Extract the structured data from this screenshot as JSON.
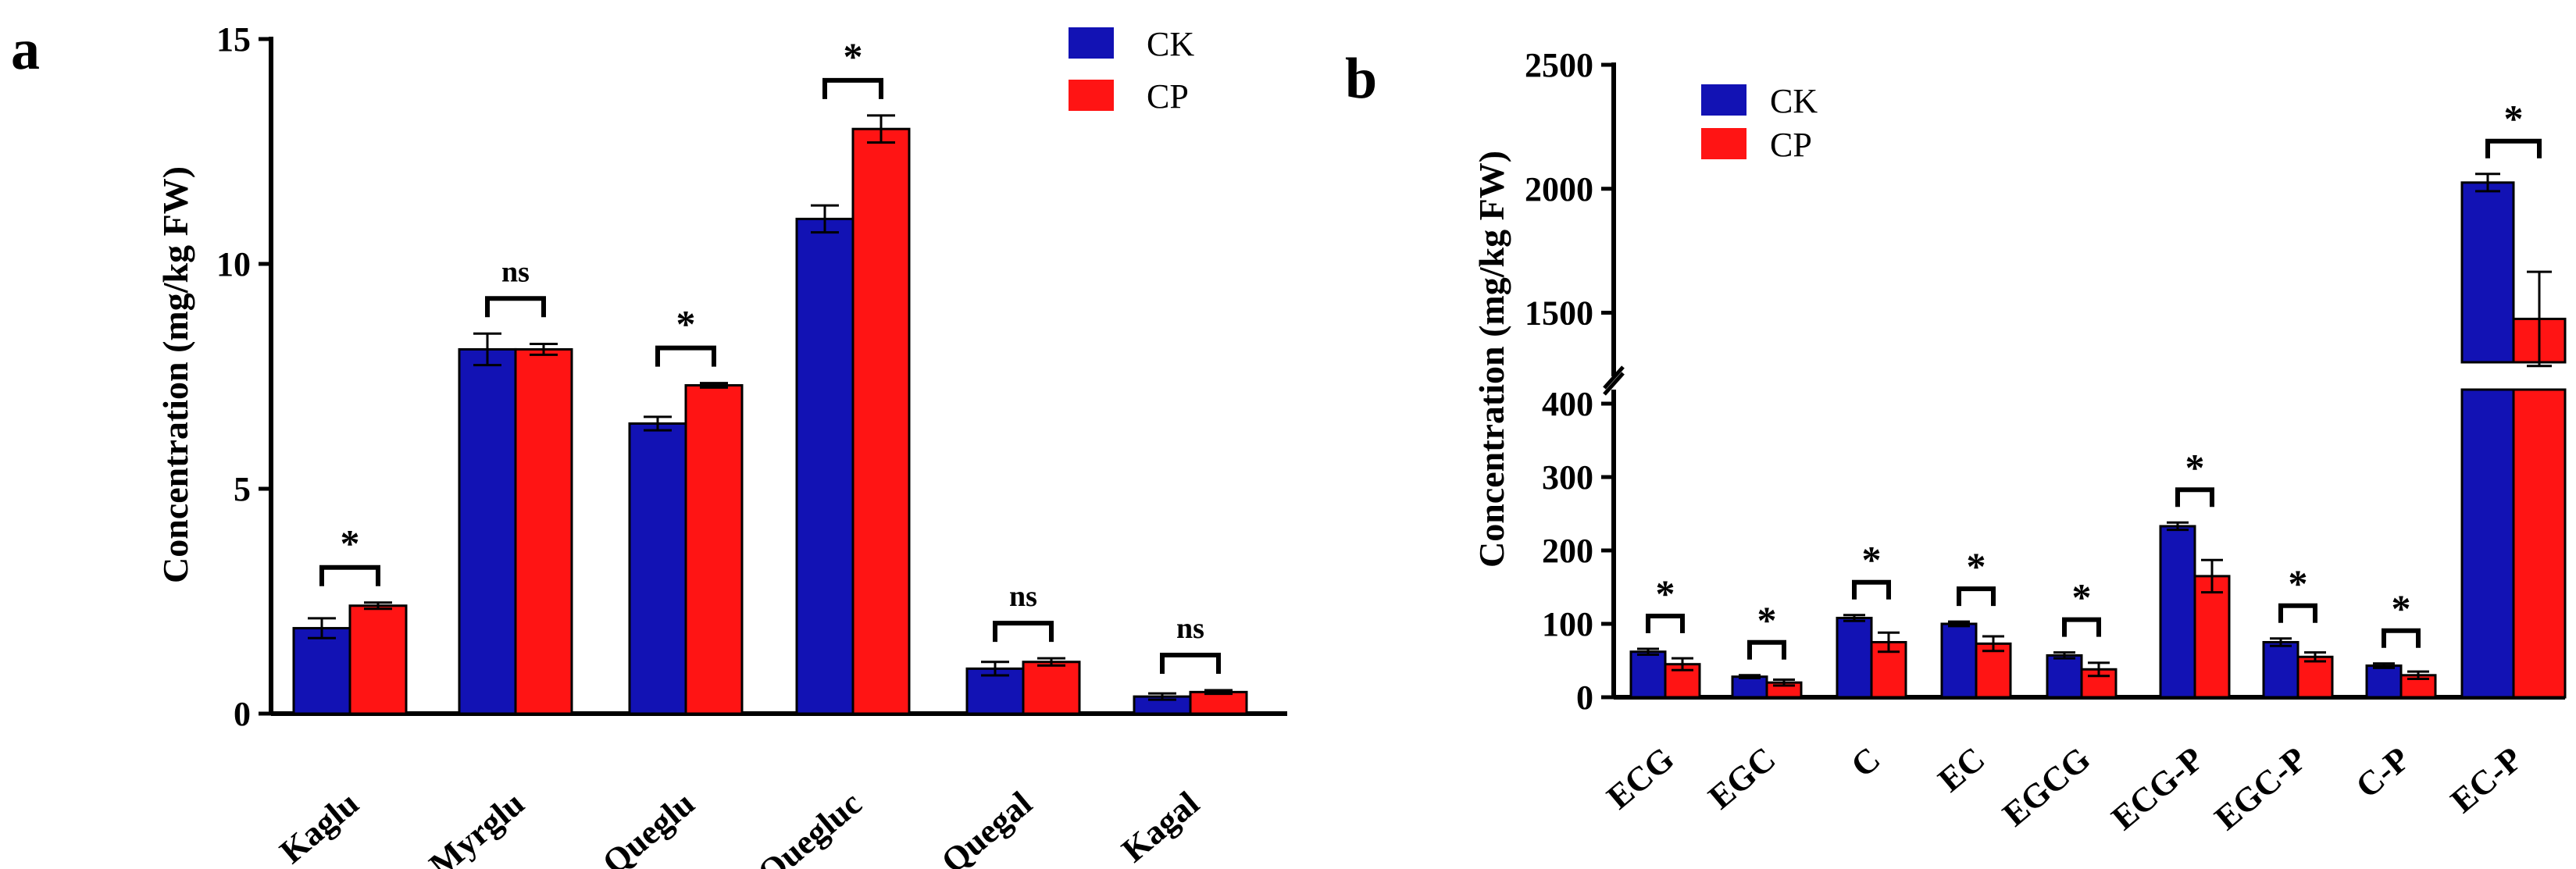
{
  "colors": {
    "CK": "#1212B4",
    "CP": "#FF1414"
  },
  "legend": [
    {
      "name": "CK",
      "color": "#1212B4"
    },
    {
      "name": "CP",
      "color": "#FF1414"
    }
  ],
  "chart_data": [
    {
      "panel": "a",
      "type": "bar",
      "ylabel": "Concentration (mg/kg FW)",
      "ylim": [
        0,
        15
      ],
      "yticks": [
        0,
        5,
        10,
        15
      ],
      "legend_position": "top-right",
      "categories": [
        "Kaglu",
        "Myrglu",
        "Queglu",
        "Quegluc",
        "Quegal",
        "Kagal"
      ],
      "series": [
        {
          "name": "CK",
          "values": [
            1.9,
            8.1,
            6.45,
            11.0,
            1.0,
            0.38
          ],
          "errors": [
            0.22,
            0.35,
            0.15,
            0.3,
            0.15,
            0.07
          ]
        },
        {
          "name": "CP",
          "values": [
            2.4,
            8.1,
            7.3,
            13.0,
            1.15,
            0.48
          ],
          "errors": [
            0.07,
            0.12,
            0.05,
            0.3,
            0.08,
            0.04
          ]
        }
      ],
      "significance": [
        "*",
        "ns",
        "*",
        "*",
        "ns",
        "ns"
      ]
    },
    {
      "panel": "b",
      "type": "bar",
      "ylabel": "Concentration (mg/kg FW)",
      "ylim": [
        0,
        2500
      ],
      "axis_break": [
        400,
        1300
      ],
      "yticks": [
        0,
        100,
        200,
        300,
        400,
        1500,
        2000,
        2500
      ],
      "legend_position": "top-left",
      "categories": [
        "ECG",
        "EGC",
        "C",
        "EC",
        "EGCG",
        "ECG-P",
        "EGC-P",
        "C-P",
        "EC-P"
      ],
      "series": [
        {
          "name": "CK",
          "values": [
            62,
            28,
            108,
            100,
            57,
            233,
            75,
            43,
            2025
          ],
          "errors": [
            4,
            2,
            4,
            3,
            4,
            5,
            5,
            3,
            35
          ]
        },
        {
          "name": "CP",
          "values": [
            45,
            20,
            75,
            73,
            38,
            165,
            55,
            30,
            1475
          ],
          "errors": [
            8,
            4,
            13,
            10,
            9,
            22,
            6,
            5,
            190
          ]
        }
      ],
      "significance": [
        "*",
        "*",
        "*",
        "*",
        "*",
        "*",
        "*",
        "*",
        "*"
      ]
    }
  ]
}
